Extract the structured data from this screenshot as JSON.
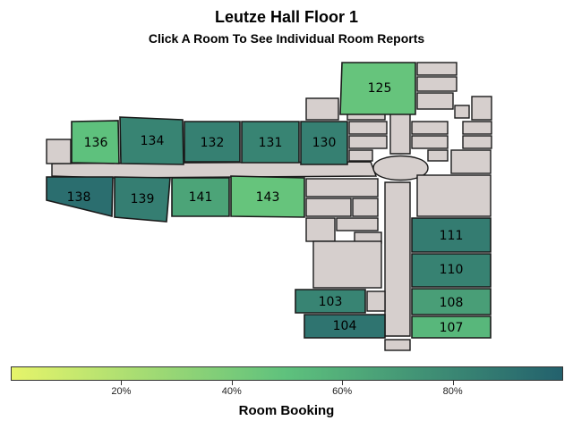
{
  "title": "Leutze Hall Floor 1",
  "subtitle": "Click A Room To See Individual Room Reports",
  "colors": {
    "building_fill": "#d6cfcd",
    "outline": "#1a1a1a",
    "scale_low": "#e6f46a",
    "scale_mid": "#5ec17d",
    "scale_high": "#23616d"
  },
  "chart_data": {
    "type": "heatmap",
    "variable": "Room Booking",
    "unit": "%",
    "range": [
      0,
      100
    ],
    "rooms": [
      {
        "id": "125",
        "label": "125",
        "booking": 47
      },
      {
        "id": "136",
        "label": "136",
        "booking": 50
      },
      {
        "id": "134",
        "label": "134",
        "booking": 82
      },
      {
        "id": "132",
        "label": "132",
        "booking": 84
      },
      {
        "id": "131",
        "label": "131",
        "booking": 82
      },
      {
        "id": "130",
        "label": "130",
        "booking": 84
      },
      {
        "id": "138",
        "label": "138",
        "booking": 93
      },
      {
        "id": "139",
        "label": "139",
        "booking": 85
      },
      {
        "id": "141",
        "label": "141",
        "booking": 65
      },
      {
        "id": "143",
        "label": "143",
        "booking": 47
      },
      {
        "id": "111",
        "label": "111",
        "booking": 86
      },
      {
        "id": "110",
        "label": "110",
        "booking": 83
      },
      {
        "id": "103",
        "label": "103",
        "booking": 82
      },
      {
        "id": "108",
        "label": "108",
        "booking": 68
      },
      {
        "id": "104",
        "label": "104",
        "booking": 90
      },
      {
        "id": "107",
        "label": "107",
        "booking": 55
      }
    ]
  },
  "legend": {
    "title": "Room Booking",
    "ticks": [
      {
        "value": 20,
        "label": "20%"
      },
      {
        "value": 40,
        "label": "40%"
      },
      {
        "value": 60,
        "label": "60%"
      },
      {
        "value": 80,
        "label": "80%"
      }
    ]
  }
}
